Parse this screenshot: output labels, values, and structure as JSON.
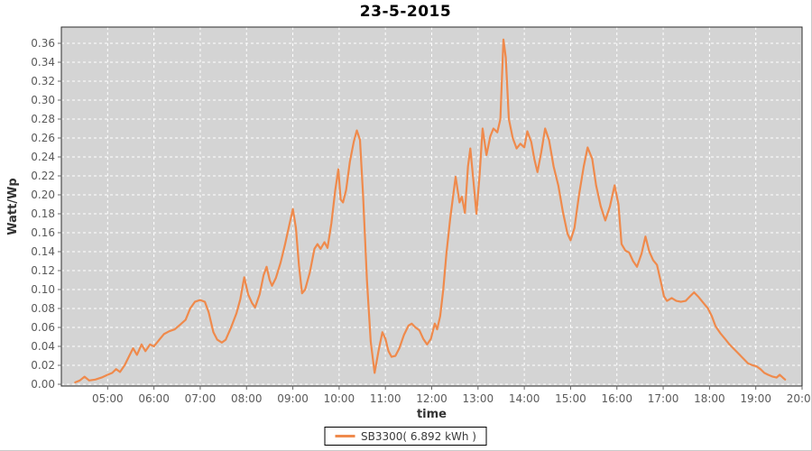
{
  "title": "23-5-2015",
  "legend": {
    "series_label": "SB3300( 6.892 kWh )"
  },
  "colors": {
    "series": "#EF8A4C",
    "plot_bg": "#D4D4D4",
    "grid": "#FFFFFF",
    "plot_border": "#2b2b2b",
    "tick": "#666666",
    "tick_label": "#5a5a5a",
    "axis_title": "#333333",
    "page_bg": "#FFFFFF",
    "legend_border": "#000000"
  },
  "chart_data": {
    "type": "line",
    "title": "23-5-2015",
    "xlabel": "time",
    "ylabel": "Watt/Wp",
    "grid": true,
    "legend_position": "bottom",
    "xlim_hours": [
      4.0,
      20.0
    ],
    "ylim": [
      0.0,
      0.377
    ],
    "x_ticks": [
      "05:00",
      "06:00",
      "07:00",
      "08:00",
      "09:00",
      "10:00",
      "11:00",
      "12:00",
      "13:00",
      "14:00",
      "15:00",
      "16:00",
      "17:00",
      "18:00",
      "19:00",
      "20:00"
    ],
    "y_ticks": [
      "0.00",
      "0.02",
      "0.04",
      "0.06",
      "0.08",
      "0.10",
      "0.12",
      "0.14",
      "0.16",
      "0.18",
      "0.20",
      "0.22",
      "0.24",
      "0.26",
      "0.28",
      "0.30",
      "0.32",
      "0.34",
      "0.36"
    ],
    "series": [
      {
        "name": "SB3300( 6.892 kWh )",
        "color": "#EF8A4C",
        "points": [
          [
            "04:18",
            0.002
          ],
          [
            "04:24",
            0.004
          ],
          [
            "04:30",
            0.008
          ],
          [
            "04:36",
            0.004
          ],
          [
            "04:44",
            0.005
          ],
          [
            "04:52",
            0.007
          ],
          [
            "05:00",
            0.01
          ],
          [
            "05:06",
            0.012
          ],
          [
            "05:11",
            0.016
          ],
          [
            "05:16",
            0.013
          ],
          [
            "05:22",
            0.02
          ],
          [
            "05:28",
            0.03
          ],
          [
            "05:33",
            0.038
          ],
          [
            "05:38",
            0.031
          ],
          [
            "05:44",
            0.042
          ],
          [
            "05:49",
            0.035
          ],
          [
            "05:55",
            0.042
          ],
          [
            "06:00",
            0.04
          ],
          [
            "06:07",
            0.047
          ],
          [
            "06:13",
            0.053
          ],
          [
            "06:20",
            0.056
          ],
          [
            "06:27",
            0.058
          ],
          [
            "06:34",
            0.063
          ],
          [
            "06:41",
            0.068
          ],
          [
            "06:47",
            0.08
          ],
          [
            "06:53",
            0.087
          ],
          [
            "07:00",
            0.089
          ],
          [
            "07:06",
            0.087
          ],
          [
            "07:11",
            0.076
          ],
          [
            "07:17",
            0.055
          ],
          [
            "07:22",
            0.047
          ],
          [
            "07:28",
            0.044
          ],
          [
            "07:33",
            0.047
          ],
          [
            "07:40",
            0.06
          ],
          [
            "07:47",
            0.075
          ],
          [
            "07:52",
            0.09
          ],
          [
            "07:57",
            0.113
          ],
          [
            "08:02",
            0.095
          ],
          [
            "08:07",
            0.086
          ],
          [
            "08:11",
            0.081
          ],
          [
            "08:17",
            0.095
          ],
          [
            "08:22",
            0.115
          ],
          [
            "08:26",
            0.124
          ],
          [
            "08:30",
            0.11
          ],
          [
            "08:33",
            0.104
          ],
          [
            "08:38",
            0.112
          ],
          [
            "08:44",
            0.128
          ],
          [
            "08:50",
            0.148
          ],
          [
            "08:56",
            0.17
          ],
          [
            "09:00",
            0.185
          ],
          [
            "09:04",
            0.165
          ],
          [
            "09:08",
            0.125
          ],
          [
            "09:12",
            0.096
          ],
          [
            "09:16",
            0.1
          ],
          [
            "09:22",
            0.118
          ],
          [
            "09:28",
            0.143
          ],
          [
            "09:32",
            0.148
          ],
          [
            "09:36",
            0.143
          ],
          [
            "09:41",
            0.15
          ],
          [
            "09:45",
            0.144
          ],
          [
            "09:50",
            0.17
          ],
          [
            "09:55",
            0.205
          ],
          [
            "09:59",
            0.227
          ],
          [
            "10:02",
            0.195
          ],
          [
            "10:05",
            0.192
          ],
          [
            "10:09",
            0.205
          ],
          [
            "10:14",
            0.235
          ],
          [
            "10:19",
            0.256
          ],
          [
            "10:23",
            0.268
          ],
          [
            "10:27",
            0.258
          ],
          [
            "10:31",
            0.2
          ],
          [
            "10:36",
            0.11
          ],
          [
            "10:41",
            0.045
          ],
          [
            "10:46",
            0.012
          ],
          [
            "10:51",
            0.035
          ],
          [
            "10:56",
            0.055
          ],
          [
            "11:00",
            0.048
          ],
          [
            "11:04",
            0.035
          ],
          [
            "11:08",
            0.029
          ],
          [
            "11:13",
            0.03
          ],
          [
            "11:18",
            0.038
          ],
          [
            "11:24",
            0.052
          ],
          [
            "11:30",
            0.062
          ],
          [
            "11:34",
            0.064
          ],
          [
            "11:39",
            0.06
          ],
          [
            "11:44",
            0.057
          ],
          [
            "11:49",
            0.048
          ],
          [
            "11:54",
            0.042
          ],
          [
            "11:59",
            0.048
          ],
          [
            "12:04",
            0.064
          ],
          [
            "12:07",
            0.058
          ],
          [
            "12:11",
            0.072
          ],
          [
            "12:15",
            0.1
          ],
          [
            "12:19",
            0.137
          ],
          [
            "12:24",
            0.175
          ],
          [
            "12:28",
            0.2
          ],
          [
            "12:31",
            0.219
          ],
          [
            "12:36",
            0.192
          ],
          [
            "12:39",
            0.198
          ],
          [
            "12:43",
            0.181
          ],
          [
            "12:47",
            0.23
          ],
          [
            "12:50",
            0.249
          ],
          [
            "12:54",
            0.215
          ],
          [
            "12:58",
            0.18
          ],
          [
            "13:02",
            0.22
          ],
          [
            "13:06",
            0.27
          ],
          [
            "13:11",
            0.242
          ],
          [
            "13:16",
            0.262
          ],
          [
            "13:20",
            0.27
          ],
          [
            "13:25",
            0.266
          ],
          [
            "13:29",
            0.28
          ],
          [
            "13:33",
            0.364
          ],
          [
            "13:36",
            0.345
          ],
          [
            "13:40",
            0.28
          ],
          [
            "13:45",
            0.26
          ],
          [
            "13:50",
            0.249
          ],
          [
            "13:55",
            0.254
          ],
          [
            "14:00",
            0.25
          ],
          [
            "14:04",
            0.267
          ],
          [
            "14:09",
            0.256
          ],
          [
            "14:13",
            0.238
          ],
          [
            "14:17",
            0.224
          ],
          [
            "14:22",
            0.245
          ],
          [
            "14:27",
            0.27
          ],
          [
            "14:32",
            0.258
          ],
          [
            "14:38",
            0.23
          ],
          [
            "14:44",
            0.21
          ],
          [
            "14:50",
            0.182
          ],
          [
            "14:56",
            0.159
          ],
          [
            "15:00",
            0.152
          ],
          [
            "15:05",
            0.165
          ],
          [
            "15:11",
            0.2
          ],
          [
            "15:17",
            0.23
          ],
          [
            "15:22",
            0.25
          ],
          [
            "15:28",
            0.238
          ],
          [
            "15:33",
            0.21
          ],
          [
            "15:39",
            0.188
          ],
          [
            "15:45",
            0.173
          ],
          [
            "15:51",
            0.188
          ],
          [
            "15:57",
            0.21
          ],
          [
            "16:02",
            0.19
          ],
          [
            "16:06",
            0.148
          ],
          [
            "16:11",
            0.141
          ],
          [
            "16:16",
            0.139
          ],
          [
            "16:21",
            0.13
          ],
          [
            "16:26",
            0.124
          ],
          [
            "16:32",
            0.138
          ],
          [
            "16:37",
            0.156
          ],
          [
            "16:42",
            0.14
          ],
          [
            "16:47",
            0.131
          ],
          [
            "16:52",
            0.126
          ],
          [
            "16:57",
            0.108
          ],
          [
            "17:01",
            0.093
          ],
          [
            "17:05",
            0.088
          ],
          [
            "17:11",
            0.091
          ],
          [
            "17:17",
            0.088
          ],
          [
            "17:23",
            0.087
          ],
          [
            "17:29",
            0.088
          ],
          [
            "17:35",
            0.093
          ],
          [
            "17:40",
            0.097
          ],
          [
            "17:46",
            0.092
          ],
          [
            "17:52",
            0.086
          ],
          [
            "17:58",
            0.08
          ],
          [
            "18:03",
            0.072
          ],
          [
            "18:08",
            0.061
          ],
          [
            "18:14",
            0.054
          ],
          [
            "18:20",
            0.048
          ],
          [
            "18:26",
            0.042
          ],
          [
            "18:32",
            0.037
          ],
          [
            "18:38",
            0.032
          ],
          [
            "18:44",
            0.027
          ],
          [
            "18:50",
            0.022
          ],
          [
            "18:56",
            0.02
          ],
          [
            "19:01",
            0.019
          ],
          [
            "19:06",
            0.016
          ],
          [
            "19:11",
            0.012
          ],
          [
            "19:16",
            0.01
          ],
          [
            "19:22",
            0.008
          ],
          [
            "19:27",
            0.007
          ],
          [
            "19:31",
            0.01
          ],
          [
            "19:35",
            0.007
          ],
          [
            "19:38",
            0.005
          ]
        ]
      }
    ]
  }
}
